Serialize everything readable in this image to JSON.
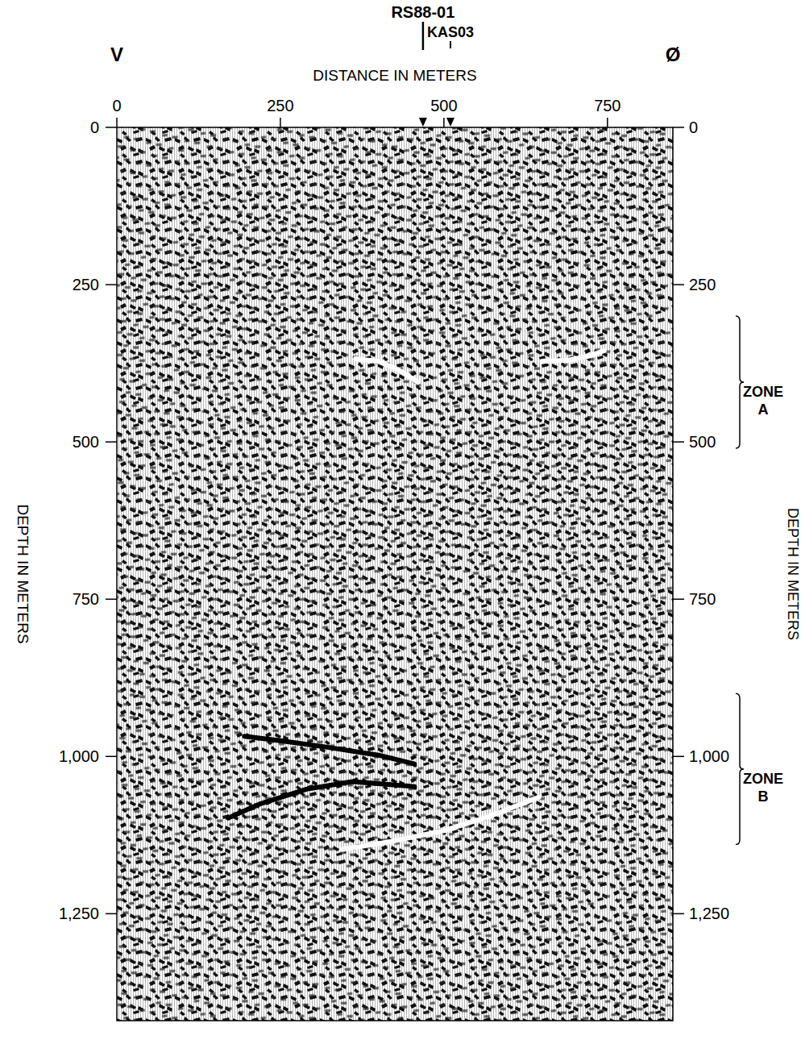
{
  "chart_data": {
    "type": "seismic_section",
    "x_label": "DISTANCE IN METERS",
    "y_label": "DEPTH IN METERS",
    "y2_label": "DEPTH IN METERS",
    "left_end_label": "V",
    "right_end_label": "Ø",
    "xlim": [
      0,
      850
    ],
    "xticks": [
      0,
      250,
      500,
      750
    ],
    "ylim": [
      0,
      1420
    ],
    "yticks": [
      0,
      250,
      500,
      750,
      {
        "value": 1000,
        "label": "1,000"
      },
      {
        "value": 1250,
        "label": "1,250"
      }
    ],
    "y2lim": [
      0,
      1420
    ],
    "y2ticks": [
      0,
      250,
      500,
      750,
      {
        "value": 1000,
        "label": "1,000"
      },
      {
        "value": 1250,
        "label": "1,250"
      }
    ],
    "wells": [
      {
        "name": "RS88-01",
        "x": 468
      },
      {
        "name": "KAS03",
        "x": 510
      }
    ],
    "zones": [
      {
        "label": "ZONE A",
        "from": 300,
        "to": 510
      },
      {
        "label": "ZONE B",
        "from": 900,
        "to": 1140
      }
    ],
    "series": [
      {
        "color": "#ffffff",
        "x": [
          365,
          400,
          430,
          460
        ],
        "values": [
          368,
          372,
          385,
          405
        ]
      },
      {
        "color": "#ffffff",
        "x": [
          650,
          690,
          720,
          745
        ],
        "values": [
          372,
          370,
          364,
          355
        ]
      },
      {
        "color": "#000000",
        "x": [
          195,
          250,
          320,
          400,
          455
        ],
        "values": [
          968,
          975,
          985,
          998,
          1012
        ]
      },
      {
        "color": "#000000",
        "x": [
          170,
          220,
          290,
          360,
          455
        ],
        "values": [
          1098,
          1075,
          1052,
          1040,
          1048
        ]
      },
      {
        "color": "#ffffff",
        "x": [
          345,
          420,
          500,
          570,
          645
        ],
        "values": [
          1148,
          1135,
          1118,
          1095,
          1065
        ]
      }
    ]
  }
}
